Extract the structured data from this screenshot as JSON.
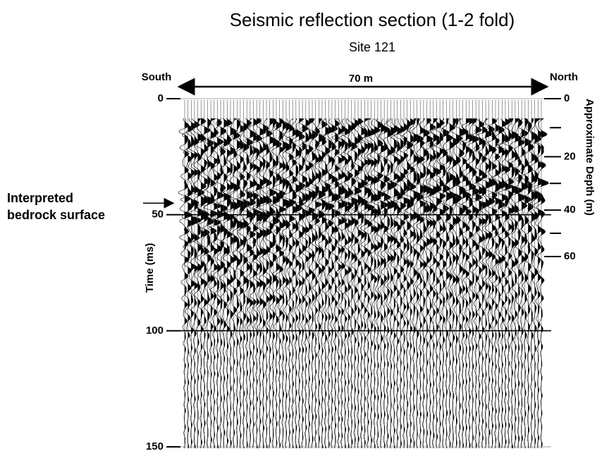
{
  "chart_data": {
    "type": "seismic",
    "title": "Seismic reflection section (1-2 fold)",
    "subtitle": "Site 121",
    "left_end_label": "South",
    "right_end_label": "North",
    "span_label": "70 m",
    "ylabel": "Time (ms)",
    "y2label": "Approximate Depth (m)",
    "annotation": [
      "Interpreted",
      "bedrock surface"
    ],
    "annotation_time": 45,
    "ylim": [
      0,
      150
    ],
    "yticks": [
      0,
      50,
      100,
      150
    ],
    "y2ticks": [
      0,
      20,
      40,
      60
    ],
    "y2tick_times": [
      0,
      25,
      48,
      68
    ],
    "y2minor_ticks": [
      10,
      30,
      50
    ],
    "y2minor_times": [
      12.5,
      36.5,
      58
    ]
  }
}
